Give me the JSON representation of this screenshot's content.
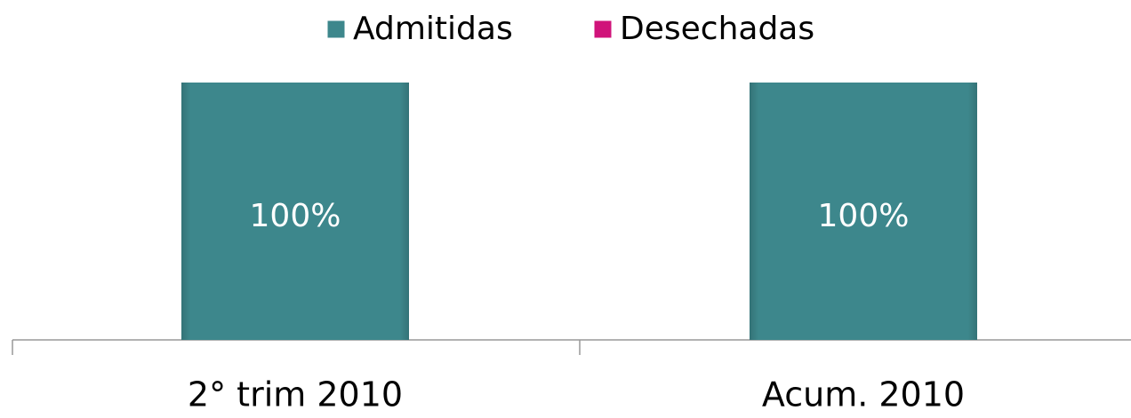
{
  "chart_data": {
    "type": "bar",
    "stacked": true,
    "categories": [
      "2° trim 2010",
      "Acum. 2010"
    ],
    "series": [
      {
        "name": "Admitidas",
        "color": "#3d878c",
        "values": [
          100,
          100
        ],
        "value_labels": [
          "100%",
          "100%"
        ]
      },
      {
        "name": "Desechadas",
        "color": "#d0137a",
        "values": [
          0,
          0
        ]
      }
    ],
    "ylim": [
      0,
      100
    ],
    "legend": "top"
  }
}
